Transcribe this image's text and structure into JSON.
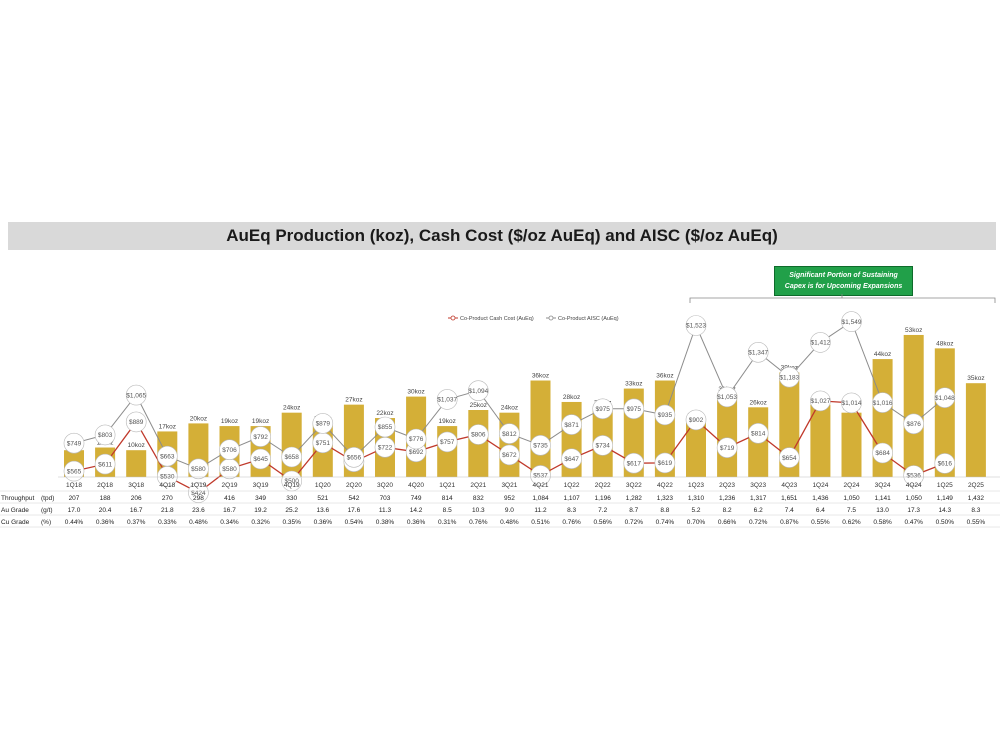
{
  "header": {
    "title": "AuEq Production (koz), Cash Cost ($/oz AuEq) and AISC ($/oz AuEq)"
  },
  "note": {
    "line1": "Significant Portion of Sustaining",
    "line2": "Capex is for Upcoming Expansions"
  },
  "colors": {
    "bar": "#d4af37",
    "cash": "#c0392b",
    "aisc": "#8c8c8c",
    "note_bg": "#21a049",
    "title_bg": "#d9d9d9"
  },
  "chart_data": {
    "type": "bar",
    "categories": [
      "1Q18",
      "2Q18",
      "3Q18",
      "4Q18",
      "1Q19",
      "2Q19",
      "3Q19",
      "4Q19",
      "1Q20",
      "2Q20",
      "3Q20",
      "4Q20",
      "1Q21",
      "2Q21",
      "3Q21",
      "4Q21",
      "1Q22",
      "2Q22",
      "3Q22",
      "4Q22",
      "1Q23",
      "2Q23",
      "3Q23",
      "4Q23",
      "1Q24",
      "2Q24",
      "3Q24",
      "4Q24",
      "1Q25",
      "2Q25"
    ],
    "production_koz": [
      10,
      11,
      10,
      17,
      20,
      19,
      19,
      24,
      20,
      27,
      22,
      30,
      19,
      25,
      24,
      36,
      28,
      26,
      33,
      36,
      21,
      31,
      26,
      39,
      27,
      24,
      44,
      53,
      48,
      35
    ],
    "production_labels": [
      "10koz",
      "11koz",
      "10koz",
      "17koz",
      "20koz",
      "19koz",
      "19koz",
      "24koz",
      "20koz",
      "27koz",
      "22koz",
      "30koz",
      "19koz",
      "25koz",
      "24koz",
      "36koz",
      "28koz",
      "26koz",
      "33koz",
      "36koz",
      "21koz",
      "31koz",
      "26koz",
      "39koz",
      "27koz",
      "24koz",
      "44koz",
      "53koz",
      "48koz",
      "35koz"
    ],
    "series": [
      {
        "name": "Co-Product Cash Cost (AuEq)",
        "values": [
          565,
          611,
          889,
          530,
          424,
          580,
          645,
          500,
          751,
          627,
          722,
          692,
          757,
          806,
          672,
          537,
          647,
          734,
          617,
          619,
          902,
          719,
          814,
          654,
          1027,
          1014,
          684,
          536,
          616,
          null
        ],
        "labels": [
          "$565",
          "$611",
          "$889",
          "$530",
          "$424",
          "$580",
          "$645",
          "$500",
          "$751",
          "$627",
          "$722",
          "$692",
          "$757",
          "$806",
          "$672",
          "$537",
          "$647",
          "$734",
          "$617",
          "$619",
          "$902",
          "$719",
          "$814",
          "$654",
          "$1,027",
          "$1,014",
          "$684",
          "$536",
          "$616",
          ""
        ]
      },
      {
        "name": "Co-Product AISC (AuEq)",
        "values": [
          749,
          803,
          1065,
          663,
          580,
          706,
          792,
          658,
          879,
          656,
          855,
          776,
          1037,
          1094,
          812,
          735,
          871,
          975,
          975,
          935,
          1523,
          1053,
          1347,
          1183,
          1412,
          1549,
          1016,
          876,
          1048,
          null
        ],
        "labels": [
          "$749",
          "$803",
          "$1,065",
          "$663",
          "$580",
          "$706",
          "$792",
          "$658",
          "$879",
          "$656",
          "$855",
          "$776",
          "$1,037",
          "$1,094",
          "$812",
          "$735",
          "$871",
          "$975",
          "$975",
          "$935",
          "$1,523",
          "$1,053",
          "$1,347",
          "$1,183",
          "$1,412",
          "$1,549",
          "$1,016",
          "$876",
          "$1,048",
          ""
        ]
      }
    ],
    "table": [
      {
        "label": "Throughput",
        "unit": "(tpd)",
        "values": [
          "207",
          "188",
          "206",
          "270",
          "298",
          "416",
          "349",
          "330",
          "521",
          "542",
          "703",
          "749",
          "814",
          "832",
          "952",
          "1,084",
          "1,107",
          "1,196",
          "1,282",
          "1,323",
          "1,310",
          "1,236",
          "1,317",
          "1,651",
          "1,436",
          "1,050",
          "1,141",
          "1,050",
          "1,149",
          "1,432"
        ]
      },
      {
        "label": "Au Grade",
        "unit": "(g/t)",
        "values": [
          "17.0",
          "20.4",
          "16.7",
          "21.8",
          "23.6",
          "16.7",
          "19.2",
          "25.2",
          "13.6",
          "17.6",
          "11.3",
          "14.2",
          "8.5",
          "10.3",
          "9.0",
          "11.2",
          "8.3",
          "7.2",
          "8.7",
          "8.8",
          "5.2",
          "8.2",
          "6.2",
          "7.4",
          "6.4",
          "7.5",
          "13.0",
          "17.3",
          "14.3",
          "8.3"
        ]
      },
      {
        "label": "Cu Grade",
        "unit": "(%)",
        "values": [
          "0.44%",
          "0.36%",
          "0.37%",
          "0.33%",
          "0.48%",
          "0.34%",
          "0.32%",
          "0.35%",
          "0.36%",
          "0.54%",
          "0.38%",
          "0.36%",
          "0.31%",
          "0.76%",
          "0.48%",
          "0.51%",
          "0.76%",
          "0.56%",
          "0.72%",
          "0.74%",
          "0.70%",
          "0.66%",
          "0.72%",
          "0.87%",
          "0.55%",
          "0.62%",
          "0.58%",
          "0.47%",
          "0.50%",
          "0.55%"
        ]
      }
    ],
    "legend_position": "top-center",
    "grid": false
  }
}
